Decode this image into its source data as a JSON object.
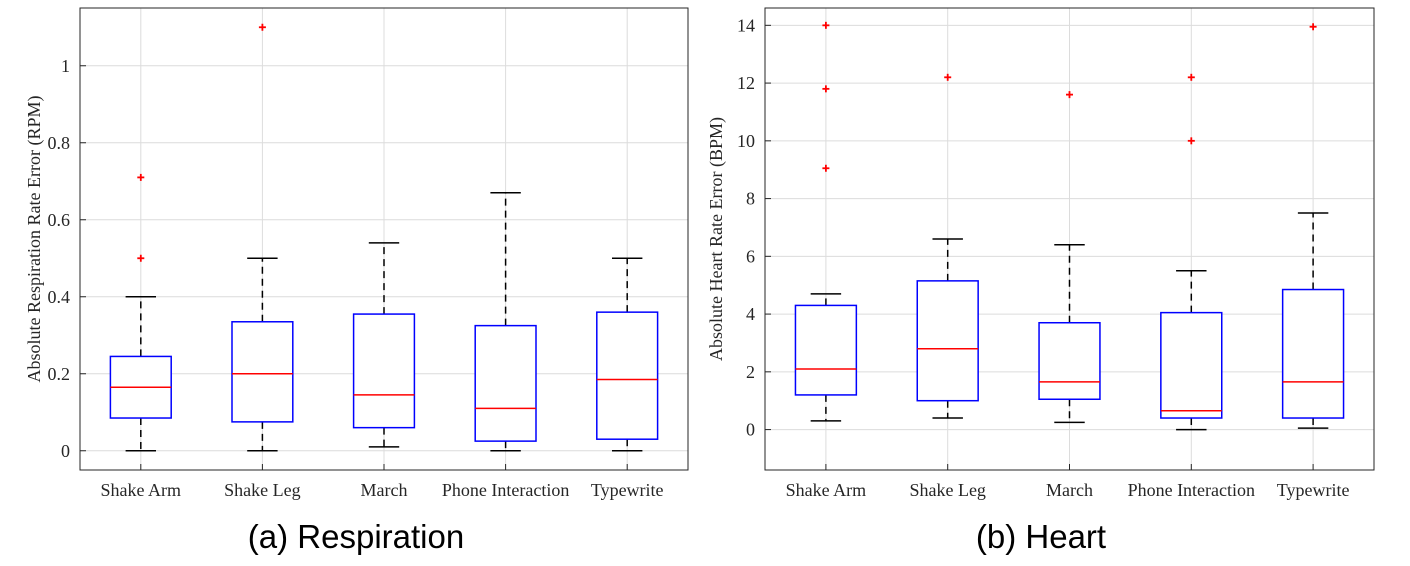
{
  "colors": {
    "box": "#0000ff",
    "median": "#ff0000",
    "whisker": "#000000",
    "outlier": "#ff0000",
    "grid": "#dcdcdc",
    "axis": "#262626"
  },
  "chart_data": [
    {
      "type": "box",
      "caption": "(a) Respiration",
      "ylabel": "Absolute Respiration Rate Error (RPM)",
      "ylim": [
        -0.05,
        1.15
      ],
      "yticks": [
        0,
        0.2,
        0.4,
        0.6,
        0.8,
        1
      ],
      "ytick_labels": [
        "0",
        "0.2",
        "0.4",
        "0.6",
        "0.8",
        "1"
      ],
      "grid": true,
      "categories": [
        "Shake Arm",
        "Shake Leg",
        "March",
        "Phone Interaction",
        "Typewrite"
      ],
      "boxes": [
        {
          "whisker_low": 0,
          "q1": 0.085,
          "median": 0.165,
          "q3": 0.245,
          "whisker_high": 0.4,
          "outliers": [
            0.5,
            0.71
          ]
        },
        {
          "whisker_low": 0,
          "q1": 0.075,
          "median": 0.2,
          "q3": 0.335,
          "whisker_high": 0.5,
          "outliers": [
            1.1
          ]
        },
        {
          "whisker_low": 0.01,
          "q1": 0.06,
          "median": 0.145,
          "q3": 0.355,
          "whisker_high": 0.54,
          "outliers": []
        },
        {
          "whisker_low": 0,
          "q1": 0.025,
          "median": 0.11,
          "q3": 0.325,
          "whisker_high": 0.67,
          "outliers": []
        },
        {
          "whisker_low": 0,
          "q1": 0.03,
          "median": 0.185,
          "q3": 0.36,
          "whisker_high": 0.5,
          "outliers": []
        }
      ]
    },
    {
      "type": "box",
      "caption": "(b) Heart",
      "ylabel": "Absolute Heart Rate Error (BPM)",
      "ylim": [
        -1.4,
        14.6
      ],
      "yticks": [
        0,
        2,
        4,
        6,
        8,
        10,
        12,
        14
      ],
      "ytick_labels": [
        "0",
        "2",
        "4",
        "6",
        "8",
        "10",
        "12",
        "14"
      ],
      "grid": true,
      "categories": [
        "Shake Arm",
        "Shake Leg",
        "March",
        "Phone Interaction",
        "Typewrite"
      ],
      "boxes": [
        {
          "whisker_low": 0.3,
          "q1": 1.2,
          "median": 2.1,
          "q3": 4.3,
          "whisker_high": 4.7,
          "outliers": [
            9.05,
            11.8,
            14
          ]
        },
        {
          "whisker_low": 0.4,
          "q1": 1.0,
          "median": 2.8,
          "q3": 5.15,
          "whisker_high": 6.6,
          "outliers": [
            12.2
          ]
        },
        {
          "whisker_low": 0.25,
          "q1": 1.05,
          "median": 1.65,
          "q3": 3.7,
          "whisker_high": 6.4,
          "outliers": [
            11.6
          ]
        },
        {
          "whisker_low": 0,
          "q1": 0.4,
          "median": 0.65,
          "q3": 4.05,
          "whisker_high": 5.5,
          "outliers": [
            10,
            12.2
          ]
        },
        {
          "whisker_low": 0.05,
          "q1": 0.4,
          "median": 1.65,
          "q3": 4.85,
          "whisker_high": 7.5,
          "outliers": [
            13.95
          ]
        }
      ]
    }
  ]
}
